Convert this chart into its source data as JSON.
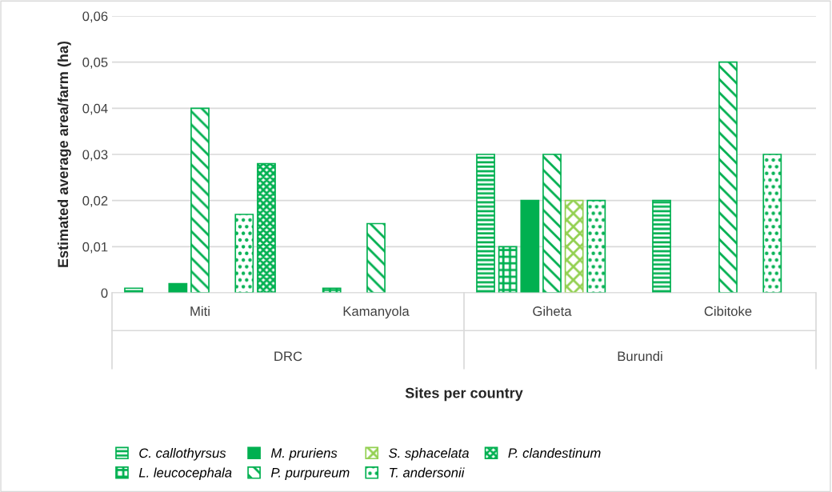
{
  "chart_data": {
    "type": "bar",
    "xlabel": "Sites per country",
    "ylabel": "Estimated average area/farm (ha)",
    "categories": [
      "Miti",
      "Kamanyola",
      "Giheta",
      "Cibitoke"
    ],
    "series": [
      {
        "name": "C. callothyrsus",
        "color": "#00b050",
        "values": [
          0.001,
          null,
          0.03,
          0.02
        ]
      },
      {
        "name": "L. leucocephala",
        "color": "#00b050",
        "values": [
          null,
          0.001,
          0.01,
          null
        ]
      },
      {
        "name": "M. pruriens",
        "color": "#00b050",
        "values": [
          0.002,
          null,
          0.02,
          null
        ]
      },
      {
        "name": "P. purpureum",
        "color": "#00b050",
        "values": [
          0.04,
          0.015,
          0.03,
          0.05
        ]
      },
      {
        "name": "S. sphacelata",
        "color": "#92d050",
        "values": [
          null,
          null,
          0.02,
          null
        ]
      },
      {
        "name": "T. andersonii",
        "color": "#00b050",
        "values": [
          0.017,
          null,
          0.02,
          0.03
        ]
      },
      {
        "name": "P. clandestinum",
        "color": "#00b050",
        "values": [
          0.028,
          null,
          null,
          null
        ]
      }
    ],
    "ylim": [
      0,
      0.06
    ],
    "yticks": [
      0,
      {
        "value": 0.01,
        "label": "0,01"
      },
      {
        "value": 0.02,
        "label": "0,02"
      },
      {
        "value": 0.03,
        "label": "0,03"
      },
      {
        "value": 0.04,
        "label": "0,04"
      },
      {
        "value": 0.05,
        "label": "0,05"
      },
      {
        "value": 0.06,
        "label": "0,06"
      }
    ],
    "annotations": [
      "DRC",
      "Burundi"
    ],
    "grid": "y",
    "legend": "bottom"
  }
}
